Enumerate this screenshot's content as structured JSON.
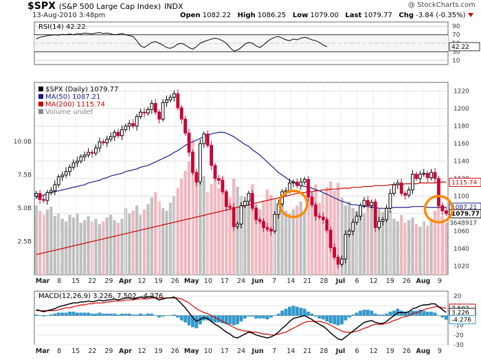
{
  "header": {
    "symbol": "$SPX",
    "name": "(S&P 500 Large Cap Index)",
    "exchange": "INDX",
    "date": "13-Aug-2010 3:48pm",
    "open_label": "Open",
    "open": "1082.22",
    "high_label": "High",
    "high": "1086.25",
    "low_label": "Low",
    "low": "1079.00",
    "last_label": "Last",
    "last": "1079.77",
    "chg_label": "Chg",
    "chg": "-3.84 (-0.35%)",
    "brand": "@ StockCharts.com"
  },
  "colors": {
    "up": "#000000",
    "down": "#cc0033",
    "ma50": "#1a1a8c",
    "ma200": "#cc0000",
    "vol_up": "#c0c0c0",
    "vol_down": "#f0b8c0",
    "macd": "#000000",
    "signal": "#cc0000",
    "histogram": "#3399cc",
    "highlight": "#ff8800"
  },
  "chart_data": [
    {
      "type": "line",
      "title": "RSI(14) 42.22",
      "y_ticks": [
        "90",
        "70",
        "50",
        "30",
        "10"
      ],
      "ylim": [
        0,
        100
      ],
      "last_value_label": "42.22",
      "values": [
        60,
        64,
        66,
        68,
        69,
        70,
        69,
        71,
        70,
        72,
        70,
        73,
        72,
        74,
        73,
        72,
        74,
        75,
        73,
        74,
        72,
        70,
        71,
        73,
        70,
        68,
        66,
        56,
        44,
        40,
        46,
        52,
        54,
        50,
        46,
        40,
        38,
        42,
        48,
        50,
        46,
        40,
        36,
        42,
        50,
        54,
        57,
        60,
        62,
        60,
        56,
        50,
        40,
        32,
        34,
        40,
        48,
        52,
        50,
        44,
        40,
        46,
        54,
        60,
        64,
        66,
        62,
        58,
        56,
        60,
        58,
        62,
        64,
        62,
        58,
        56,
        52,
        46,
        42
      ]
    },
    {
      "type": "candlestick",
      "title": "$SPX (Daily) 1079.77",
      "legend": [
        "$SPX (Daily) 1079.77",
        "MA(50) 1087.21",
        "MA(200) 1115.74",
        "Volume undef"
      ],
      "y_ticks": [
        "1220",
        "1200",
        "1180",
        "1160",
        "1140",
        "1120",
        "1100",
        "1080",
        "1060",
        "1040",
        "1020"
      ],
      "ylim": [
        1010,
        1230
      ],
      "volume_ticks": [
        "10.0B",
        "7.5B",
        "5.0B",
        "2.5B"
      ],
      "last_labels": [
        "1115.74",
        "1087.21",
        "1079.77"
      ],
      "volume_last": "3648917",
      "x_labels": [
        "Mar",
        "8",
        "15",
        "22",
        "29",
        "Apr",
        "12",
        "19",
        "26",
        "May",
        "10",
        "17",
        "24",
        "Jun",
        "7",
        "14",
        "21",
        "28",
        "Jul",
        "6",
        "12",
        "19",
        "26",
        "Aug",
        "9"
      ],
      "close": [
        1103,
        1096,
        1095,
        1104,
        1106,
        1113,
        1122,
        1124,
        1128,
        1133,
        1138,
        1140,
        1145,
        1147,
        1150,
        1149,
        1155,
        1162,
        1161,
        1165,
        1168,
        1173,
        1169,
        1176,
        1180,
        1183,
        1180,
        1191,
        1196,
        1195,
        1199,
        1206,
        1196,
        1188,
        1207,
        1210,
        1213,
        1217,
        1201,
        1188,
        1172,
        1150,
        1127,
        1116,
        1160,
        1171,
        1158,
        1135,
        1120,
        1118,
        1105,
        1088,
        1087,
        1065,
        1068,
        1089,
        1094,
        1103,
        1086,
        1073,
        1071,
        1064,
        1062,
        1060,
        1079,
        1091,
        1105,
        1106,
        1115,
        1116,
        1112,
        1116,
        1119,
        1099,
        1090,
        1077,
        1076,
        1073,
        1061,
        1041,
        1030,
        1022,
        1028,
        1056,
        1060,
        1070,
        1077,
        1089,
        1095,
        1089,
        1093,
        1064,
        1071,
        1073,
        1086,
        1103,
        1113,
        1115,
        1103,
        1101,
        1107,
        1125,
        1120,
        1125,
        1126,
        1121,
        1127,
        1120,
        1089,
        1083,
        1080
      ],
      "ma50": [
        1098,
        1100,
        1101,
        1103,
        1104,
        1105,
        1106,
        1107,
        1108,
        1109,
        1110,
        1111,
        1112,
        1113,
        1115,
        1116,
        1117,
        1118,
        1120,
        1121,
        1123,
        1124,
        1125,
        1126,
        1128,
        1129,
        1130,
        1131,
        1133,
        1134,
        1135,
        1137,
        1139,
        1141,
        1143,
        1145,
        1147,
        1150,
        1152,
        1155,
        1158,
        1160,
        1162,
        1164,
        1166,
        1168,
        1170,
        1171,
        1172,
        1173,
        1173,
        1172,
        1170,
        1168,
        1165,
        1162,
        1159,
        1157,
        1153,
        1150,
        1147,
        1143,
        1139,
        1135,
        1131,
        1127,
        1124,
        1121,
        1118,
        1116,
        1114,
        1112,
        1111,
        1110,
        1109,
        1107,
        1106,
        1104,
        1102,
        1100,
        1098,
        1096,
        1094,
        1093,
        1091,
        1090,
        1090,
        1089,
        1088,
        1088,
        1087,
        1087,
        1086,
        1086,
        1086,
        1086,
        1087,
        1087,
        1087,
        1087,
        1087,
        1088,
        1088,
        1088,
        1088,
        1087,
        1087,
        1087,
        1087,
        1087,
        1087
      ],
      "ma200": [
        1033,
        1034,
        1035,
        1036,
        1037,
        1038,
        1039,
        1040,
        1041,
        1042,
        1043,
        1044,
        1045,
        1046,
        1047,
        1048,
        1049,
        1050,
        1051,
        1052,
        1053,
        1054,
        1055,
        1056,
        1057,
        1058,
        1059,
        1060,
        1061,
        1062,
        1063,
        1064,
        1065,
        1066,
        1067,
        1068,
        1069,
        1070,
        1071,
        1072,
        1073,
        1074,
        1075,
        1076,
        1077,
        1078,
        1079,
        1080,
        1081,
        1082,
        1083,
        1084,
        1085,
        1086,
        1087,
        1088,
        1089,
        1090,
        1091,
        1092,
        1093,
        1094,
        1095,
        1096,
        1097,
        1098,
        1099,
        1100,
        1101,
        1102,
        1103,
        1104,
        1104,
        1105,
        1105,
        1106,
        1106,
        1107,
        1107,
        1108,
        1108,
        1108,
        1109,
        1109,
        1109,
        1110,
        1110,
        1110,
        1111,
        1111,
        1111,
        1112,
        1112,
        1112,
        1112,
        1113,
        1113,
        1113,
        1113,
        1114,
        1114,
        1114,
        1114,
        1115,
        1115,
        1115,
        1115,
        1115,
        1116,
        1116,
        1116
      ],
      "volume": [
        5.2,
        4.8,
        4.5,
        4.9,
        5.1,
        4.4,
        4.6,
        4.2,
        4.0,
        4.5,
        4.3,
        4.6,
        3.9,
        4.1,
        4.4,
        4.0,
        4.2,
        3.8,
        4.0,
        4.3,
        4.5,
        4.1,
        3.9,
        4.2,
        5.0,
        4.6,
        4.8,
        5.2,
        4.5,
        4.9,
        5.3,
        5.8,
        6.2,
        5.5,
        5.0,
        4.8,
        5.4,
        5.9,
        6.5,
        7.2,
        7.8,
        8.5,
        10.2,
        7.6,
        6.9,
        7.4,
        6.2,
        6.8,
        7.1,
        6.5,
        7.3,
        6.0,
        5.8,
        7.2,
        6.6,
        5.9,
        5.4,
        6.1,
        6.8,
        5.2,
        4.9,
        5.6,
        6.4,
        6.0,
        5.7,
        5.0,
        5.3,
        4.8,
        4.6,
        4.9,
        5.2,
        5.5,
        4.7,
        5.9,
        6.2,
        6.8,
        5.4,
        6.1,
        6.6,
        7.0,
        6.3,
        6.9,
        5.8,
        5.2,
        5.5,
        5.0,
        4.8,
        5.1,
        4.6,
        4.9,
        5.3,
        5.6,
        5.0,
        4.7,
        4.4,
        4.8,
        4.2,
        4.0,
        4.5,
        3.9,
        4.1,
        4.3,
        3.8,
        3.6,
        4.0,
        3.7,
        4.2,
        4.8,
        5.2,
        4.4,
        3.9
      ]
    },
    {
      "type": "line",
      "title": "MACD(12,26,9) 3.226, 7.502, -4.276",
      "legend": [
        "MACD(12,26,9)",
        "3.226",
        "7.502",
        "-4.276"
      ],
      "y_ticks": [
        "20",
        "10",
        "0",
        "-10",
        "-20",
        "-30"
      ],
      "ylim": [
        -30,
        25
      ],
      "last_labels": [
        "7.502",
        "3.226",
        "-4.276"
      ],
      "macd": [
        6,
        5,
        4,
        5,
        6,
        7,
        9,
        10,
        11,
        12,
        13,
        13,
        14,
        14,
        15,
        14,
        15,
        16,
        15,
        16,
        16,
        17,
        16,
        17,
        18,
        18,
        17,
        18,
        19,
        18,
        19,
        20,
        18,
        16,
        17,
        18,
        18,
        19,
        16,
        12,
        8,
        3,
        -2,
        -6,
        -4,
        -2,
        -3,
        -6,
        -9,
        -11,
        -14,
        -17,
        -19,
        -22,
        -23,
        -21,
        -19,
        -17,
        -18,
        -20,
        -21,
        -22,
        -23,
        -22,
        -20,
        -17,
        -13,
        -10,
        -6,
        -3,
        -2,
        -1,
        0,
        -2,
        -4,
        -7,
        -9,
        -11,
        -14,
        -18,
        -21,
        -24,
        -25,
        -22,
        -19,
        -16,
        -13,
        -10,
        -7,
        -6,
        -5,
        -7,
        -8,
        -8,
        -6,
        -3,
        0,
        3,
        3,
        3,
        4,
        7,
        8,
        10,
        11,
        11,
        12,
        12,
        9,
        6,
        3.2
      ],
      "signal": [
        5,
        5,
        5,
        5,
        5,
        5,
        6,
        7,
        8,
        8,
        9,
        10,
        11,
        11,
        12,
        12,
        13,
        13,
        13,
        14,
        14,
        15,
        15,
        15,
        16,
        16,
        16,
        17,
        17,
        17,
        17,
        18,
        18,
        18,
        18,
        18,
        18,
        18,
        18,
        17,
        15,
        13,
        10,
        7,
        5,
        3,
        2,
        0,
        -2,
        -4,
        -6,
        -8,
        -10,
        -12,
        -14,
        -15,
        -16,
        -16,
        -17,
        -17,
        -18,
        -19,
        -19,
        -20,
        -20,
        -19,
        -18,
        -17,
        -15,
        -13,
        -11,
        -9,
        -7,
        -6,
        -6,
        -6,
        -6,
        -7,
        -8,
        -10,
        -12,
        -14,
        -16,
        -17,
        -17,
        -17,
        -16,
        -15,
        -13,
        -12,
        -10,
        -9,
        -9,
        -9,
        -8,
        -7,
        -5,
        -4,
        -2,
        -1,
        0,
        2,
        3,
        4,
        6,
        7,
        8,
        9,
        9,
        8,
        7.5
      ],
      "histogram": [
        1,
        0,
        -1,
        0,
        1,
        2,
        3,
        3,
        3,
        4,
        4,
        3,
        3,
        3,
        3,
        2,
        2,
        3,
        2,
        2,
        2,
        2,
        1,
        2,
        2,
        2,
        1,
        1,
        2,
        1,
        2,
        2,
        0,
        -2,
        -1,
        0,
        0,
        1,
        -2,
        -5,
        -7,
        -10,
        -12,
        -13,
        -9,
        -5,
        -5,
        -6,
        -7,
        -7,
        -8,
        -9,
        -9,
        -10,
        -9,
        -6,
        -3,
        -1,
        -1,
        -3,
        -3,
        -3,
        -4,
        -2,
        0,
        2,
        5,
        7,
        9,
        10,
        9,
        8,
        7,
        4,
        2,
        -1,
        -3,
        -4,
        -6,
        -8,
        -9,
        -10,
        -9,
        -5,
        -2,
        1,
        3,
        5,
        6,
        6,
        5,
        2,
        1,
        1,
        2,
        4,
        5,
        7,
        5,
        4,
        4,
        5,
        5,
        6,
        5,
        4,
        4,
        3,
        0,
        -2,
        -4.3
      ]
    }
  ]
}
